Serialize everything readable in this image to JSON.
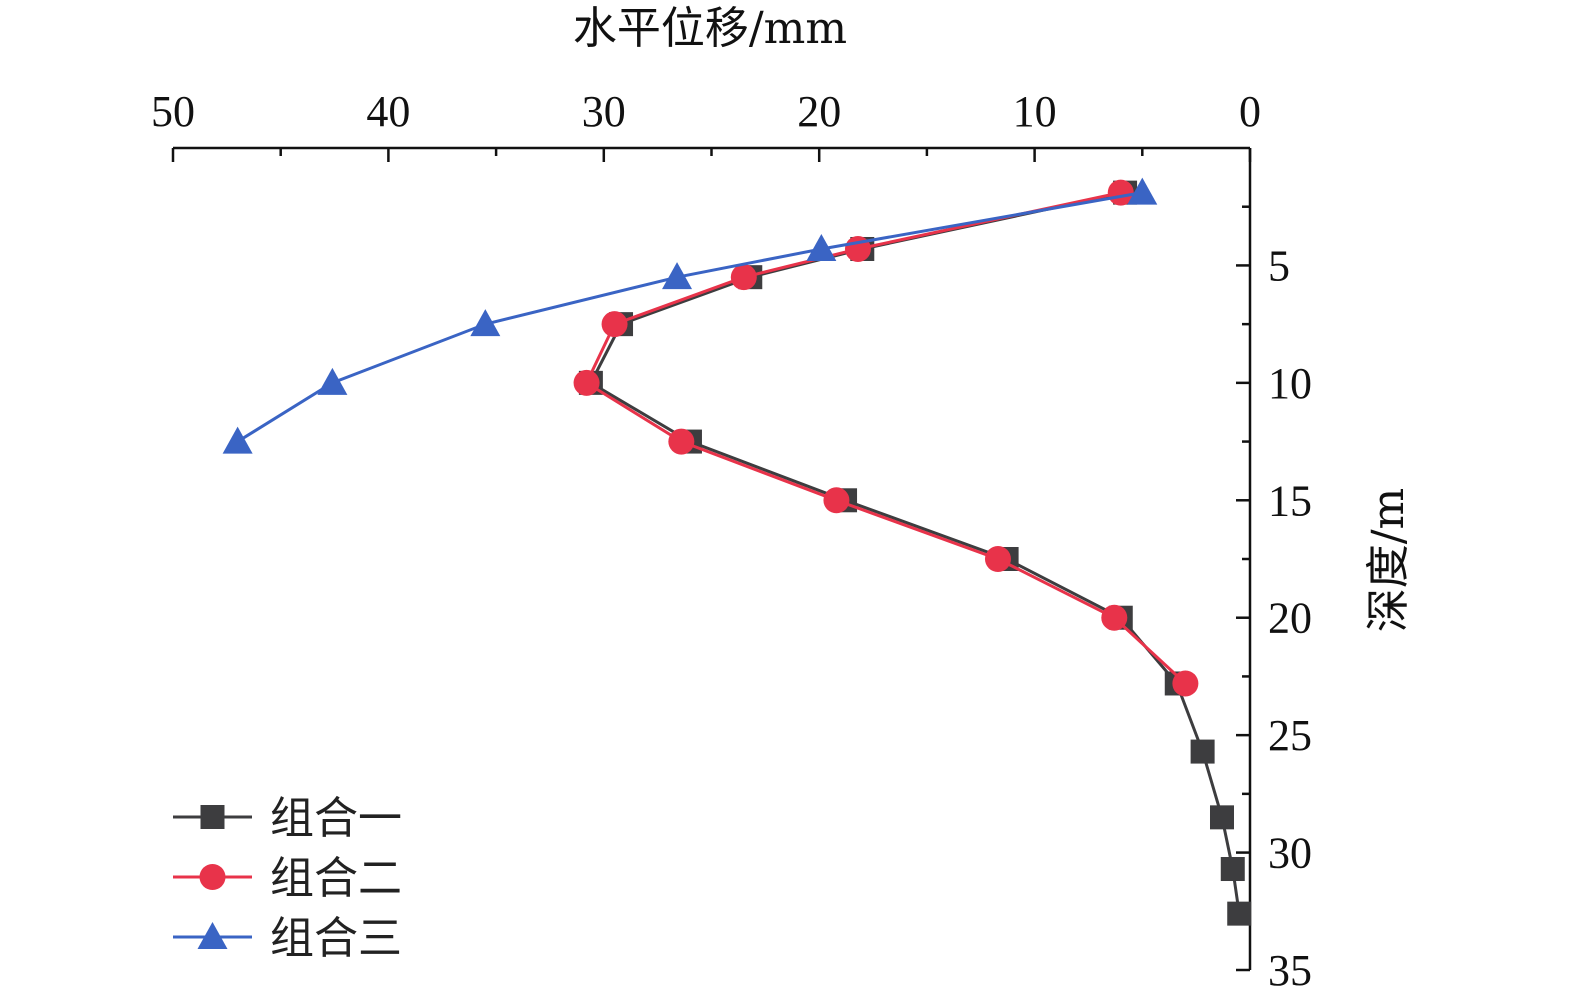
{
  "chart_data": {
    "type": "line",
    "xlabel": "水平位移/mm",
    "ylabel": "深度/m",
    "xlim": [
      50,
      0
    ],
    "ylim": [
      0,
      35
    ],
    "x_axis_position": "top",
    "y_axis_position": "right",
    "x_reversed": true,
    "y_reversed": true,
    "xticks": [
      50,
      40,
      30,
      20,
      10,
      0
    ],
    "yticks": [
      5,
      10,
      15,
      20,
      25,
      30,
      35
    ],
    "grid": false,
    "legend_position": "bottom-left",
    "series": [
      {
        "name": "组合一",
        "color": "#3d3d3f",
        "marker": "square",
        "points": [
          {
            "x": 5.8,
            "y": 1.9
          },
          {
            "x": 18.0,
            "y": 4.3
          },
          {
            "x": 23.2,
            "y": 5.5
          },
          {
            "x": 29.2,
            "y": 7.5
          },
          {
            "x": 30.6,
            "y": 10.0
          },
          {
            "x": 26.0,
            "y": 12.5
          },
          {
            "x": 18.8,
            "y": 15.0
          },
          {
            "x": 11.3,
            "y": 17.5
          },
          {
            "x": 6.0,
            "y": 20.0
          },
          {
            "x": 3.4,
            "y": 22.8
          },
          {
            "x": 2.2,
            "y": 25.7
          },
          {
            "x": 1.3,
            "y": 28.5
          },
          {
            "x": 0.8,
            "y": 30.7
          },
          {
            "x": 0.5,
            "y": 32.6
          }
        ]
      },
      {
        "name": "组合二",
        "color": "#e8334a",
        "marker": "circle",
        "points": [
          {
            "x": 6.0,
            "y": 1.9
          },
          {
            "x": 18.2,
            "y": 4.3
          },
          {
            "x": 23.5,
            "y": 5.5
          },
          {
            "x": 29.5,
            "y": 7.5
          },
          {
            "x": 30.8,
            "y": 10.0
          },
          {
            "x": 26.4,
            "y": 12.5
          },
          {
            "x": 19.2,
            "y": 15.0
          },
          {
            "x": 11.7,
            "y": 17.5
          },
          {
            "x": 6.3,
            "y": 20.0
          },
          {
            "x": 3.0,
            "y": 22.8
          }
        ]
      },
      {
        "name": "组合三",
        "color": "#3a64c4",
        "marker": "triangle",
        "points": [
          {
            "x": 5.0,
            "y": 1.9
          },
          {
            "x": 19.9,
            "y": 4.3
          },
          {
            "x": 26.6,
            "y": 5.5
          },
          {
            "x": 35.5,
            "y": 7.5
          },
          {
            "x": 42.6,
            "y": 10.0
          },
          {
            "x": 47.0,
            "y": 12.5
          }
        ]
      }
    ]
  }
}
